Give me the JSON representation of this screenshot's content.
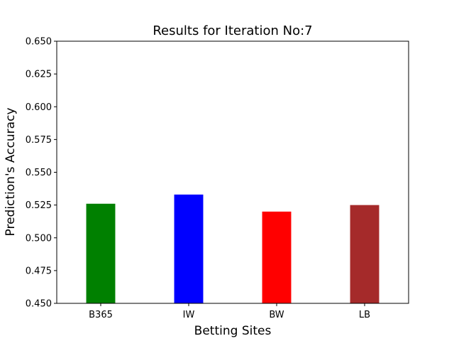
{
  "chart_data": {
    "type": "bar",
    "title": "Results for Iteration No:7",
    "xlabel": "Betting Sites",
    "ylabel": "Prediction's Accuracy",
    "categories": [
      "B365",
      "IW",
      "BW",
      "LB"
    ],
    "values": [
      0.526,
      0.533,
      0.52,
      0.525
    ],
    "colors": [
      "#008000",
      "#0000ff",
      "#ff0000",
      "#a52a2a"
    ],
    "ylim": [
      0.45,
      0.65
    ],
    "yticks": [
      "0.450",
      "0.475",
      "0.500",
      "0.525",
      "0.550",
      "0.575",
      "0.600",
      "0.625",
      "0.650"
    ],
    "grid": false,
    "legend": "none"
  }
}
